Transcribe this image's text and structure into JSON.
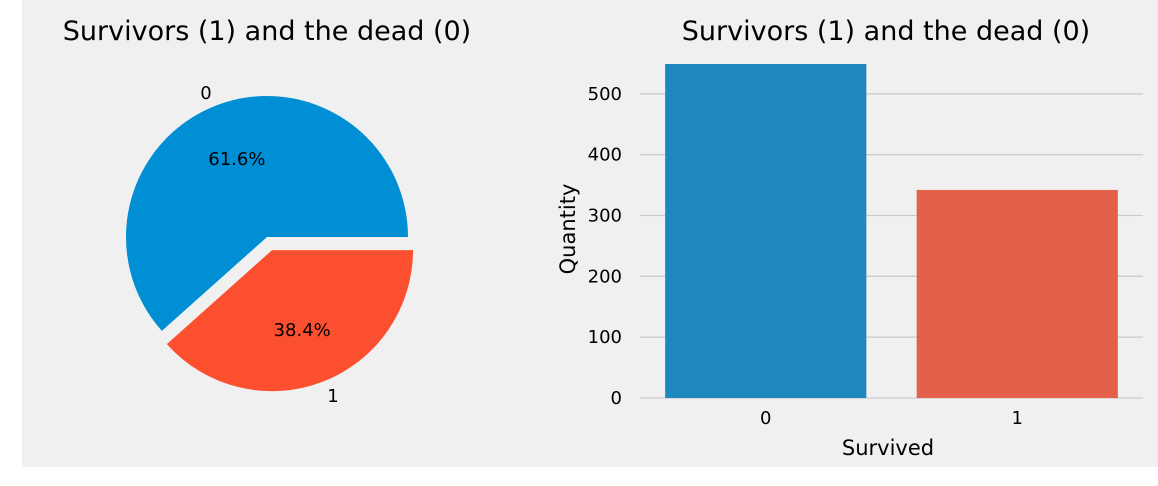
{
  "chart_data": [
    {
      "type": "pie",
      "title": "Survivors (1) and the dead (0)",
      "labels": [
        "0",
        "1"
      ],
      "values": [
        61.6,
        38.4
      ],
      "autopct_labels": [
        "61.6%",
        "38.4%"
      ],
      "explode": [
        0,
        0.1
      ],
      "start_angle": 0,
      "colors": [
        "#008fd5",
        "#fc4f30"
      ]
    },
    {
      "type": "bar",
      "title": "Survivors (1) and the dead (0)",
      "categories": [
        "0",
        "1"
      ],
      "values": [
        549,
        342
      ],
      "xlabel": "Survived",
      "ylabel": "Quantity",
      "ylim": [
        0,
        549
      ],
      "yticks": [
        0,
        100,
        200,
        300,
        400,
        500
      ],
      "grid": "horizontal",
      "colors": [
        "#1f87bf",
        "#e4604a"
      ]
    }
  ],
  "style": {
    "figure_background": "#f0f0f0",
    "grid_color": "#cbcbcb",
    "text_color": "#000000"
  }
}
